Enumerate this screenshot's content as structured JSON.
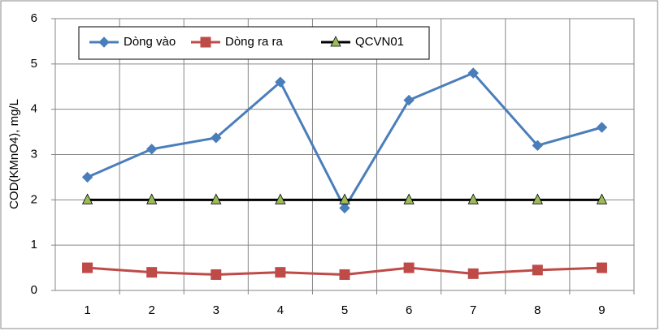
{
  "chart_data": {
    "type": "line",
    "y_label": "COD(KMnO4), mg/L",
    "categories": [
      "1",
      "2",
      "3",
      "4",
      "5",
      "6",
      "7",
      "8",
      "9"
    ],
    "series": [
      {
        "name": "Dòng vào",
        "color": "#4a7ebb",
        "marker": "diamond",
        "values": [
          2.5,
          3.12,
          3.37,
          4.6,
          1.82,
          4.2,
          4.8,
          3.2,
          3.6
        ]
      },
      {
        "name": "Dòng ra ra",
        "color": "#be4b48",
        "marker": "square",
        "values": [
          0.5,
          0.4,
          0.35,
          0.4,
          0.35,
          0.5,
          0.37,
          0.45,
          0.5
        ]
      },
      {
        "name": "QCVN01",
        "color": "#000000",
        "marker": "triangle",
        "marker_color": "#9bbb59",
        "values": [
          2,
          2,
          2,
          2,
          2,
          2,
          2,
          2,
          2
        ]
      }
    ],
    "ylim": [
      0,
      6
    ],
    "yticks": [
      0,
      1,
      2,
      3,
      4,
      5,
      6
    ],
    "grid": true
  }
}
